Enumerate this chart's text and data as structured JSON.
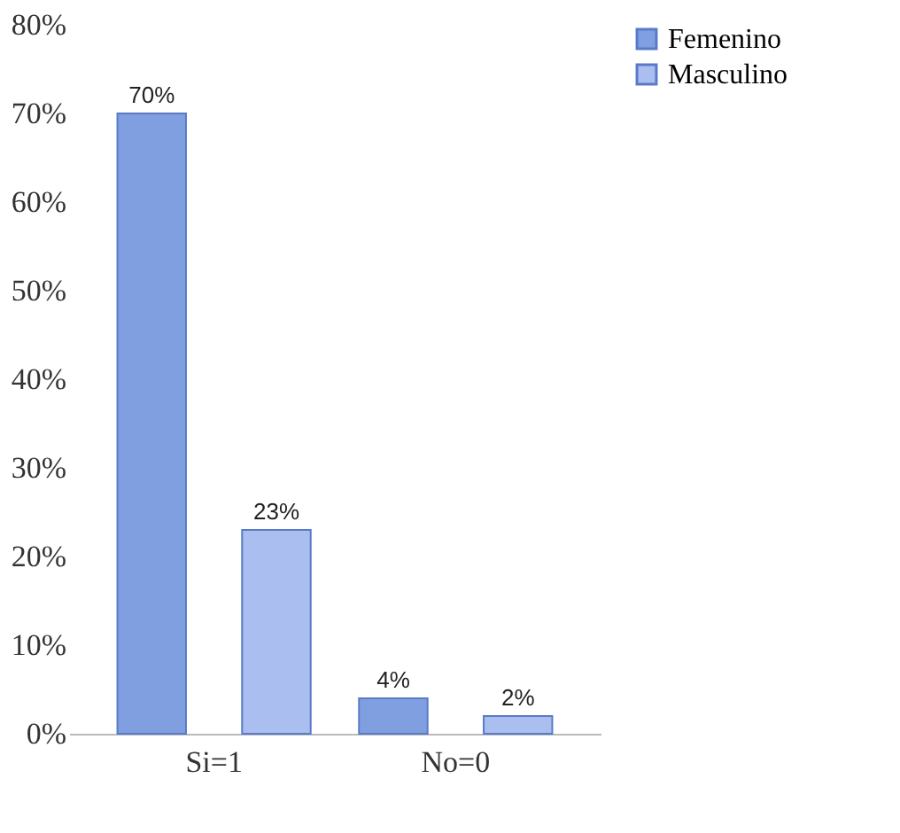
{
  "chart_data": {
    "type": "bar",
    "categories": [
      "Si=1",
      "No=0"
    ],
    "series": [
      {
        "name": "Femenino",
        "color": "#7f9fe0",
        "values": [
          70,
          4
        ],
        "value_labels": [
          "70%",
          "4%"
        ]
      },
      {
        "name": "Masculino",
        "color": "#aabef0",
        "values": [
          23,
          2
        ],
        "value_labels": [
          "23%",
          "2%"
        ]
      }
    ],
    "ylim": [
      0,
      80
    ],
    "yticks": [
      {
        "value": 0,
        "label": "0%"
      },
      {
        "value": 10,
        "label": "10%"
      },
      {
        "value": 20,
        "label": "20%"
      },
      {
        "value": 30,
        "label": "30%"
      },
      {
        "value": 40,
        "label": "40%"
      },
      {
        "value": 50,
        "label": "50%"
      },
      {
        "value": 60,
        "label": "60%"
      },
      {
        "value": 70,
        "label": "70%"
      },
      {
        "value": 80,
        "label": "80%"
      }
    ],
    "grid": false,
    "legend": "right"
  }
}
